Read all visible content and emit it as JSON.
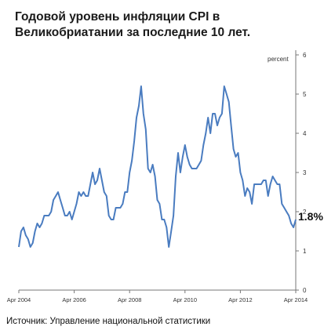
{
  "title": "Годовой уровень инфляции CPI в Великобриатании за последние 10 лет.",
  "source": "Источник: Управление национальной статистики",
  "chart_data": {
    "type": "line",
    "title": "Годовой уровень инфляции CPI в Великобриатании за последние 10 лет.",
    "ylabel": "percent",
    "xlabel": "",
    "ylim": [
      0,
      6
    ],
    "yticks": [
      "0",
      "1",
      "2",
      "3",
      "4",
      "5",
      "6"
    ],
    "xticks": [
      "Apr 2004",
      "Apr 2006",
      "Apr 2008",
      "Apr 2010",
      "Apr 2012",
      "Apr 2014"
    ],
    "xlim_years": [
      2004.25,
      2014.25
    ],
    "grid": false,
    "line_color": "#4a7cc0",
    "last_value_label": "1.8%",
    "series": [
      {
        "values": [
          1.1,
          1.5,
          1.6,
          1.4,
          1.3,
          1.1,
          1.2,
          1.5,
          1.7,
          1.6,
          1.7,
          1.9,
          1.9,
          1.9,
          2.0,
          2.3,
          2.4,
          2.5,
          2.3,
          2.1,
          1.9,
          1.9,
          2.0,
          1.8,
          2.0,
          2.2,
          2.5,
          2.4,
          2.5,
          2.4,
          2.4,
          2.7,
          3.0,
          2.7,
          2.8,
          3.1,
          2.8,
          2.5,
          2.4,
          1.9,
          1.8,
          1.8,
          2.1,
          2.1,
          2.1,
          2.2,
          2.5,
          2.5,
          3.0,
          3.3,
          3.8,
          4.4,
          4.7,
          5.2,
          4.5,
          4.1,
          3.1,
          3.0,
          3.2,
          2.9,
          2.3,
          2.2,
          1.8,
          1.8,
          1.6,
          1.1,
          1.5,
          1.9,
          2.9,
          3.5,
          3.0,
          3.4,
          3.7,
          3.4,
          3.2,
          3.1,
          3.1,
          3.1,
          3.2,
          3.3,
          3.7,
          4.0,
          4.4,
          4.0,
          4.5,
          4.5,
          4.2,
          4.4,
          4.5,
          5.2,
          5.0,
          4.8,
          4.2,
          3.6,
          3.4,
          3.5,
          3.0,
          2.8,
          2.4,
          2.6,
          2.5,
          2.2,
          2.7,
          2.7,
          2.7,
          2.7,
          2.8,
          2.8,
          2.4,
          2.7,
          2.9,
          2.8,
          2.7,
          2.7,
          2.2,
          2.1,
          2.0,
          1.9,
          1.7,
          1.6,
          1.8
        ]
      }
    ]
  }
}
